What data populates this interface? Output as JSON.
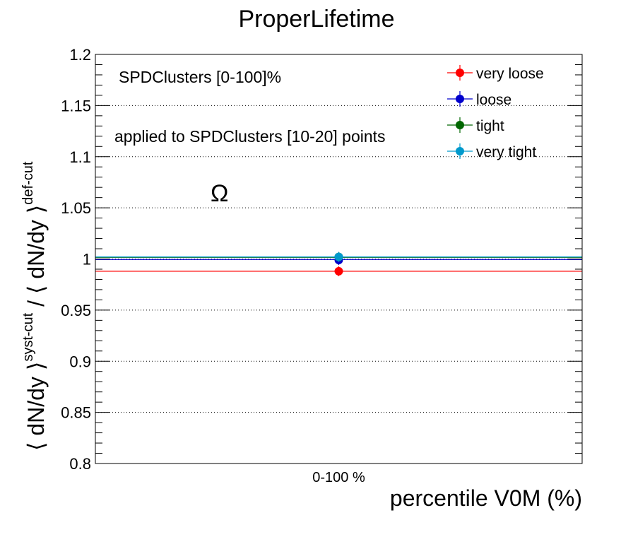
{
  "chart_data": {
    "type": "scatter",
    "title": "ProperLifetime",
    "xlabel": "percentile V0M (%)",
    "ylabel": {
      "main": "⟨ dN/dy ⟩",
      "sup1": "syst-cut",
      "mid": " / ⟨ dN/dy ⟩",
      "sup2": "def-cut"
    },
    "categories": [
      "0-100 %"
    ],
    "ylim": [
      0.8,
      1.2
    ],
    "yticks": [
      "0.8",
      "0.85",
      "0.9",
      "0.95",
      "1",
      "1.05",
      "1.1",
      "1.15",
      "1.2"
    ],
    "grid": "y",
    "annotations": [
      "SPDClusters [0-100]%",
      "applied to SPDClusters [10-20] points",
      "Ω"
    ],
    "legend_position": "top-right",
    "series": [
      {
        "name": "very loose",
        "color": "#ff0000",
        "values": [
          0.988
        ],
        "line_value": 0.988
      },
      {
        "name": "loose",
        "color": "#0000cc",
        "values": [
          0.999
        ],
        "line_value": 0.9995
      },
      {
        "name": "tight",
        "color": "#006600",
        "values": [
          1.002
        ],
        "line_value": 1.0015
      },
      {
        "name": "very tight",
        "color": "#0099cc",
        "values": [
          1.002
        ],
        "line_value": 1.002
      }
    ]
  }
}
